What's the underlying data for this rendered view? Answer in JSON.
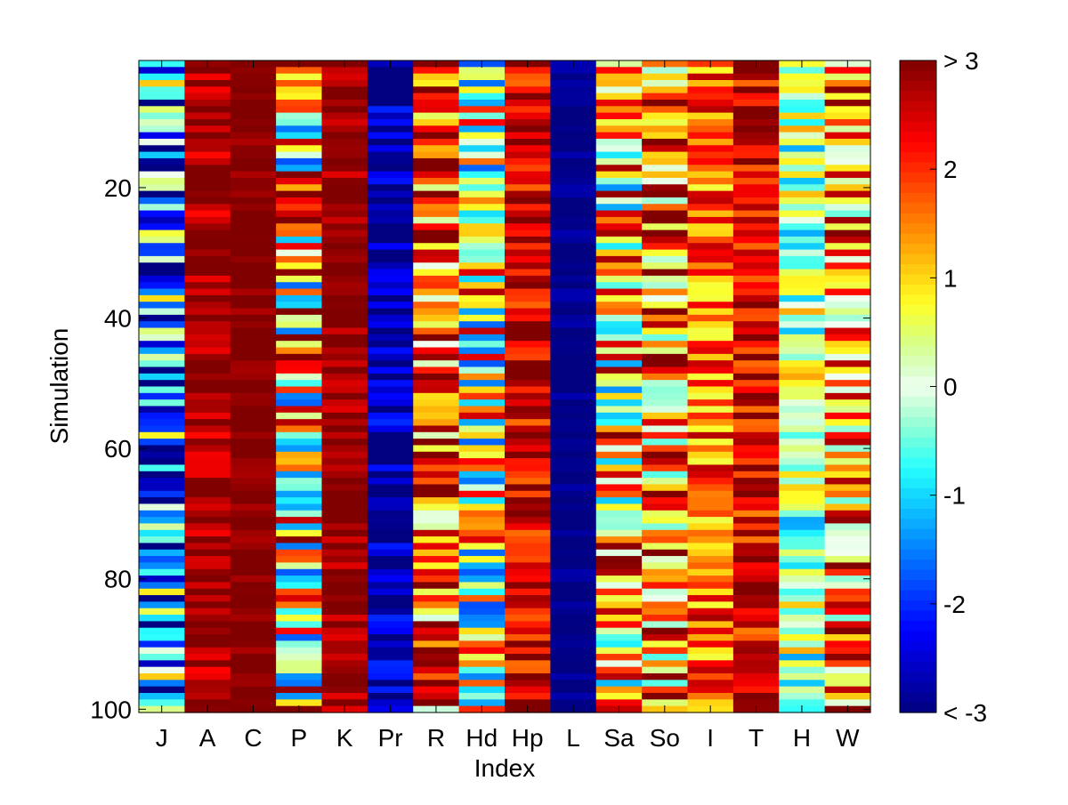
{
  "chart_data": {
    "type": "heatmap",
    "title": "",
    "xlabel": "Index",
    "ylabel": "Simulation",
    "x_categories": [
      "J",
      "A",
      "C",
      "P",
      "K",
      "Pr",
      "R",
      "Hd",
      "Hp",
      "L",
      "Sa",
      "So",
      "I",
      "T",
      "H",
      "W"
    ],
    "y_range": [
      1,
      100
    ],
    "y_ticks": [
      20,
      40,
      60,
      80,
      100
    ],
    "y_tick_labels": [
      "20",
      "40",
      "60",
      "80",
      "100"
    ],
    "color_range": [
      -3,
      3
    ],
    "colormap": "jet",
    "colorbar_ticks": [
      3,
      2,
      1,
      0,
      -1,
      -2,
      -3
    ],
    "colorbar_tick_labels": [
      "> 3",
      "2",
      "1",
      "0",
      "-1",
      "-2",
      "< -3"
    ],
    "column_profiles": [
      {
        "label": "J",
        "mean": -1.5,
        "spread": 2.6
      },
      {
        "label": "A",
        "mean": 2.8,
        "spread": 0.6
      },
      {
        "label": "C",
        "mean": 3.0,
        "spread": 0.3
      },
      {
        "label": "P",
        "mean": 0.8,
        "spread": 2.6
      },
      {
        "label": "K",
        "mean": 2.9,
        "spread": 0.5
      },
      {
        "label": "Pr",
        "mean": -2.8,
        "spread": 0.8
      },
      {
        "label": "R",
        "mean": 1.6,
        "spread": 1.8
      },
      {
        "label": "Hd",
        "mean": 0.6,
        "spread": 2.4
      },
      {
        "label": "Hp",
        "mean": 2.5,
        "spread": 0.9
      },
      {
        "label": "L",
        "mean": -3.0,
        "spread": 0.3
      },
      {
        "label": "Sa",
        "mean": 0.9,
        "spread": 2.3
      },
      {
        "label": "So",
        "mean": 1.4,
        "spread": 2.0
      },
      {
        "label": "I",
        "mean": 1.7,
        "spread": 1.1
      },
      {
        "label": "T",
        "mean": 2.4,
        "spread": 0.9
      },
      {
        "label": "H",
        "mean": 0.0,
        "spread": 1.3
      },
      {
        "label": "W",
        "mean": 1.3,
        "spread": 1.8
      }
    ],
    "colors": {
      "low": "#00008f",
      "mid": "#ffffff",
      "high": "#ff0000"
    }
  }
}
